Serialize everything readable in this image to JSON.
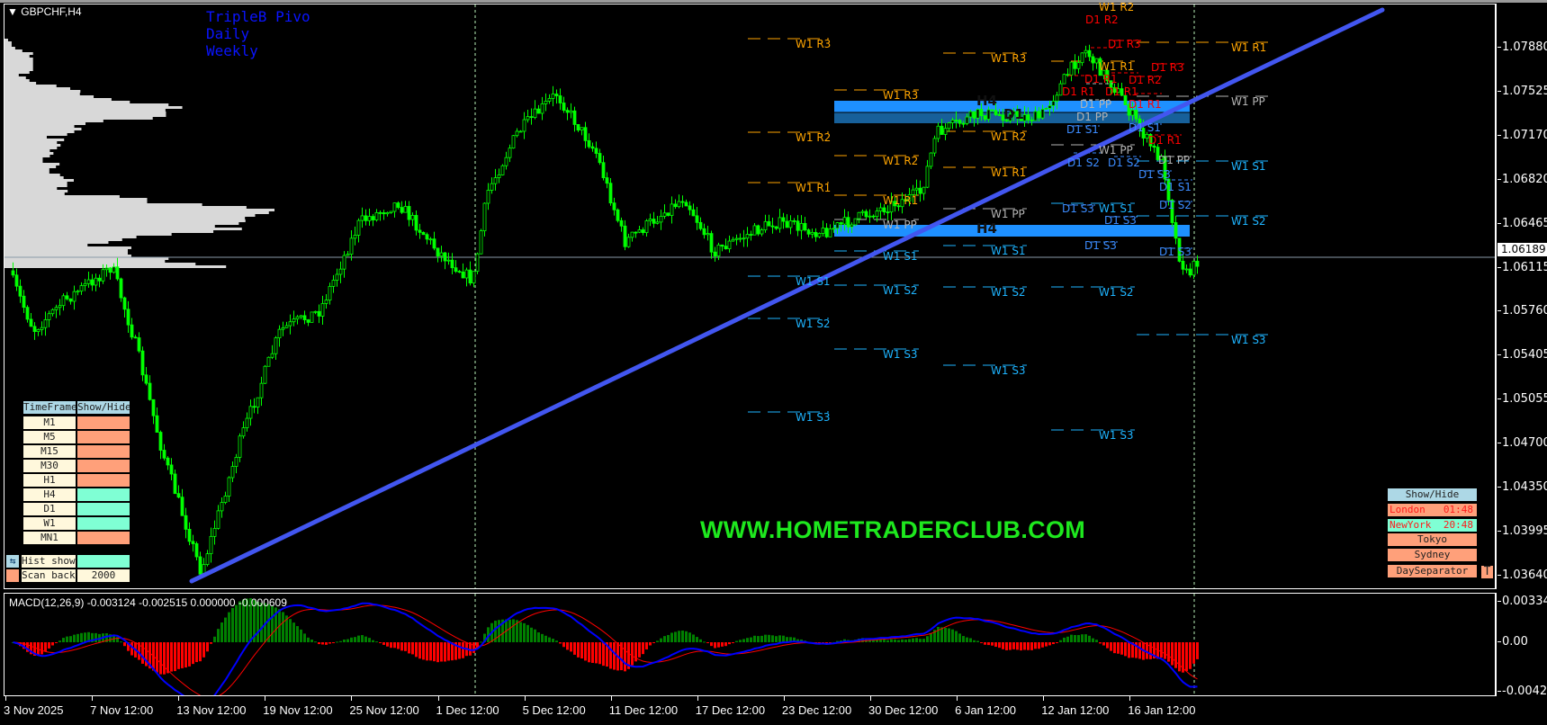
{
  "header": {
    "symbol": "GBPCHF,H4",
    "menu_icon": "triangle-down-icon"
  },
  "indicator_titles": [
    "TripleB Pivo",
    "Daily",
    "Weekly"
  ],
  "price_axis": [
    "1.07880",
    "1.07525",
    "1.07170",
    "1.06820",
    "1.06465",
    "1.06115",
    "1.05760",
    "1.05405",
    "1.05055",
    "1.04700",
    "1.04350",
    "1.03995",
    "1.03640"
  ],
  "current_price": "1.06189",
  "time_axis": [
    "3 Nov 2025",
    "7 Nov 12:00",
    "13 Nov 12:00",
    "19 Nov 12:00",
    "25 Nov 12:00",
    "1 Dec 12:00",
    "5 Dec 12:00",
    "11 Dec 12:00",
    "17 Dec 12:00",
    "23 Dec 12:00",
    "30 Dec 12:00",
    "6 Jan 12:00",
    "12 Jan 12:00",
    "16 Jan 12:00"
  ],
  "macd": {
    "label": "MACD(12,26,9) -0.003124 -0.002515 0.000000 -0.000609",
    "axis": [
      "0.003347",
      "0.00",
      "-0.004216"
    ]
  },
  "watermark": "WWW.HOMETRADERCLUB.COM",
  "zones": [
    {
      "label": "H4"
    },
    {
      "label": "D1"
    },
    {
      "label": "H4"
    }
  ],
  "timeframe_panel": {
    "header": [
      "TimeFrame",
      "Show/Hide"
    ],
    "rows": [
      {
        "tf": "M1",
        "shown": false
      },
      {
        "tf": "M5",
        "shown": false
      },
      {
        "tf": "M15",
        "shown": false
      },
      {
        "tf": "M30",
        "shown": false
      },
      {
        "tf": "H1",
        "shown": false
      },
      {
        "tf": "H4",
        "shown": true
      },
      {
        "tf": "D1",
        "shown": true
      },
      {
        "tf": "W1",
        "shown": true
      },
      {
        "tf": "MN1",
        "shown": false
      }
    ],
    "hist_show": "Hist show",
    "scan_back_label": "Scan back",
    "scan_back_value": "2000"
  },
  "session_panel": {
    "show_hide": "Show/Hide",
    "sessions": [
      {
        "name": "London",
        "time": "01:48",
        "active": false
      },
      {
        "name": "NewYork",
        "time": "20:48",
        "active": true
      },
      {
        "name": "Tokyo",
        "time": ""
      },
      {
        "name": "Sydney",
        "time": ""
      }
    ],
    "day_separator": "DaySeparator",
    "t_button": "T"
  },
  "weekly_pivots": [
    "W1 R3",
    "W1 R2",
    "W1 R1",
    "W1 S1",
    "W1 S2",
    "W1 S3",
    "W1 R3",
    "W1 R2",
    "W1 R1",
    "W1 PP",
    "W1 S1",
    "W1 S2",
    "W1 S3",
    "W1 R3",
    "W1 R2",
    "W1 R1",
    "W1 PP",
    "W1 S1",
    "W1 S2",
    "W1 S3",
    "W1 R2",
    "W1 R1",
    "W1 PP",
    "W1 S1",
    "W1 S2",
    "W1 S3",
    "W1 R1",
    "W1 PP",
    "W1 S1",
    "W1 S2",
    "W1 S3"
  ],
  "daily_pivots": [
    "D1 R2",
    "D1 R3",
    "D1 R1",
    "D1 R3",
    "D1 R1",
    "D1 R1",
    "D1 R2",
    "D1 PP",
    "D1 R1",
    "D1 PP",
    "D1 S1",
    "D1 S1",
    "D1 R1",
    "D1 PP",
    "D1 S2",
    "D1 S2",
    "D1 S3",
    "D1 S1",
    "D1 S2",
    "D1 S3",
    "D1 S3",
    "D1 S3",
    "D1 S3"
  ],
  "colors": {
    "candle": "#00ff00",
    "resistance_weekly": "#ffa500",
    "support_weekly": "#1eb4ff",
    "pivot": "#b4b4b4",
    "resistance_daily": "#ff0000",
    "support_daily": "#3c8cff",
    "trendline": "#4256f0",
    "zone_h4": "#1e90ff",
    "zone_d1": "#17609a",
    "panel_header": "#add8e6",
    "panel_cell": "#fff8dc",
    "off": "#ffa07a",
    "on": "#7fffd4",
    "macd_line": "#0000ff",
    "signal_line": "#ff0000",
    "hist_pos": "#008000",
    "hist_neg": "#ff0000"
  }
}
